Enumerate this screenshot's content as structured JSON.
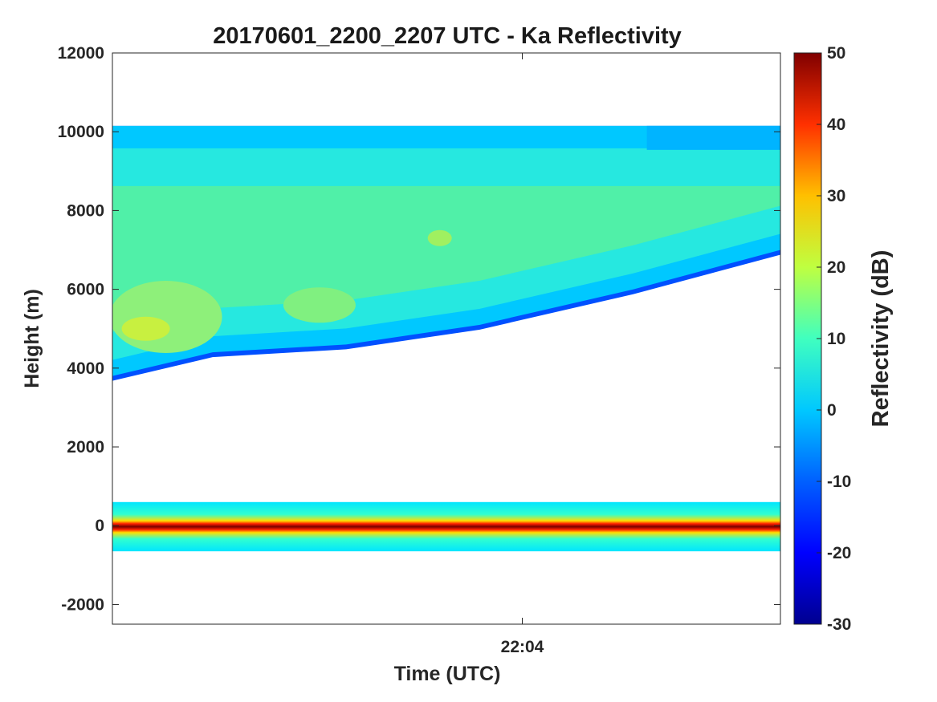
{
  "chart_data": {
    "type": "heatmap",
    "title": "20170601_2200_2207 UTC - Ka Reflectivity",
    "xlabel": "Time (UTC)",
    "ylabel": "Height (m)",
    "x_tick_labels": [
      "22:04"
    ],
    "x_tick_values": [
      0.6136
    ],
    "xlim": [
      0,
      1
    ],
    "ylim": [
      -2500,
      12000
    ],
    "y_ticks": [
      -2000,
      0,
      2000,
      4000,
      6000,
      8000,
      10000,
      12000
    ],
    "colorbar": {
      "label": "Reflectivity (dB)",
      "range": [
        -30,
        50
      ],
      "ticks": [
        -30,
        -20,
        -10,
        0,
        10,
        20,
        30,
        40,
        50
      ],
      "colormap": "jet"
    },
    "layers": {
      "cloud_top_m": 10150,
      "cloud_base_m": [
        3800,
        4400,
        4600,
        5100,
        6000,
        7000
      ],
      "cloud_base_x": [
        0.0,
        0.15,
        0.35,
        0.55,
        0.78,
        1.0
      ],
      "ground_clutter_top_m": 600,
      "ground_clutter_bottom_m": -650
    }
  }
}
